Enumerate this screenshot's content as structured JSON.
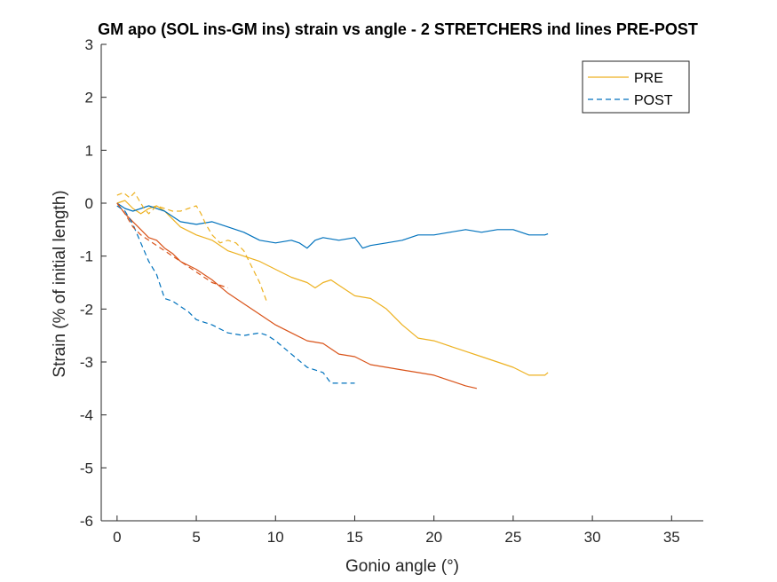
{
  "chart_data": {
    "type": "line",
    "title": "GM apo (SOL ins-GM ins) strain vs angle - 2 STRETCHERS ind lines PRE-POST",
    "xlabel": "Gonio angle (°)",
    "ylabel": "Strain (% of initial length)",
    "xlim": [
      -1,
      37
    ],
    "ylim": [
      -6,
      3
    ],
    "xticks": [
      0,
      5,
      10,
      15,
      20,
      25,
      30,
      35
    ],
    "yticks": [
      3,
      2,
      1,
      0,
      -1,
      -2,
      -3,
      -4,
      -5,
      -6
    ],
    "grid": false,
    "legend": {
      "position": "top-right",
      "entries": [
        {
          "label": "PRE",
          "color": "#EDB120",
          "dash": "solid"
        },
        {
          "label": "POST",
          "color": "#0072BD",
          "dash": "dashed"
        }
      ]
    },
    "series": [
      {
        "color": "#EDB120",
        "dash": "solid",
        "points": [
          [
            0,
            0
          ],
          [
            0.5,
            0.05
          ],
          [
            1,
            -0.1
          ],
          [
            1.5,
            -0.2
          ],
          [
            2,
            -0.1
          ],
          [
            2.5,
            -0.05
          ],
          [
            3,
            -0.15
          ],
          [
            3.5,
            -0.3
          ],
          [
            4,
            -0.45
          ],
          [
            5,
            -0.6
          ],
          [
            6,
            -0.7
          ],
          [
            7,
            -0.9
          ],
          [
            8,
            -1.0
          ],
          [
            9,
            -1.1
          ],
          [
            10,
            -1.25
          ],
          [
            11,
            -1.4
          ],
          [
            12,
            -1.5
          ],
          [
            12.5,
            -1.6
          ],
          [
            13,
            -1.5
          ],
          [
            13.5,
            -1.45
          ],
          [
            14,
            -1.55
          ],
          [
            15,
            -1.75
          ],
          [
            16,
            -1.8
          ],
          [
            17,
            -2.0
          ],
          [
            18,
            -2.3
          ],
          [
            19,
            -2.55
          ],
          [
            20,
            -2.6
          ],
          [
            21,
            -2.7
          ],
          [
            22,
            -2.8
          ],
          [
            23,
            -2.9
          ],
          [
            24,
            -3.0
          ],
          [
            25,
            -3.1
          ],
          [
            26,
            -3.25
          ],
          [
            27,
            -3.25
          ],
          [
            27.2,
            -3.2
          ]
        ]
      },
      {
        "color": "#0072BD",
        "dash": "solid",
        "points": [
          [
            0,
            0
          ],
          [
            0.5,
            -0.1
          ],
          [
            1,
            -0.15
          ],
          [
            1.5,
            -0.1
          ],
          [
            2,
            -0.05
          ],
          [
            2.5,
            -0.1
          ],
          [
            3,
            -0.15
          ],
          [
            4,
            -0.35
          ],
          [
            5,
            -0.4
          ],
          [
            6,
            -0.35
          ],
          [
            7,
            -0.45
          ],
          [
            8,
            -0.55
          ],
          [
            9,
            -0.7
          ],
          [
            10,
            -0.75
          ],
          [
            11,
            -0.7
          ],
          [
            11.5,
            -0.75
          ],
          [
            12,
            -0.85
          ],
          [
            12.5,
            -0.7
          ],
          [
            13,
            -0.65
          ],
          [
            14,
            -0.7
          ],
          [
            15,
            -0.65
          ],
          [
            15.5,
            -0.85
          ],
          [
            16,
            -0.8
          ],
          [
            17,
            -0.75
          ],
          [
            18,
            -0.7
          ],
          [
            19,
            -0.6
          ],
          [
            20,
            -0.6
          ],
          [
            21,
            -0.55
          ],
          [
            22,
            -0.5
          ],
          [
            23,
            -0.55
          ],
          [
            24,
            -0.5
          ],
          [
            25,
            -0.5
          ],
          [
            26,
            -0.6
          ],
          [
            27,
            -0.6
          ],
          [
            27.2,
            -0.58
          ]
        ]
      },
      {
        "color": "#D95319",
        "dash": "solid",
        "points": [
          [
            0,
            0
          ],
          [
            0.5,
            -0.2
          ],
          [
            1,
            -0.35
          ],
          [
            1.5,
            -0.5
          ],
          [
            2,
            -0.65
          ],
          [
            2.5,
            -0.7
          ],
          [
            3,
            -0.85
          ],
          [
            3.5,
            -0.95
          ],
          [
            4,
            -1.1
          ],
          [
            5,
            -1.25
          ],
          [
            6,
            -1.45
          ],
          [
            7,
            -1.7
          ],
          [
            8,
            -1.9
          ],
          [
            9,
            -2.1
          ],
          [
            10,
            -2.3
          ],
          [
            11,
            -2.45
          ],
          [
            12,
            -2.6
          ],
          [
            13,
            -2.65
          ],
          [
            14,
            -2.85
          ],
          [
            15,
            -2.9
          ],
          [
            16,
            -3.05
          ],
          [
            17,
            -3.1
          ],
          [
            18,
            -3.15
          ],
          [
            19,
            -3.2
          ],
          [
            20,
            -3.25
          ],
          [
            21,
            -3.35
          ],
          [
            22,
            -3.45
          ],
          [
            22.7,
            -3.5
          ]
        ]
      },
      {
        "color": "#EDB120",
        "dash": "dashed",
        "points": [
          [
            0,
            0.15
          ],
          [
            0.4,
            0.2
          ],
          [
            0.8,
            0.1
          ],
          [
            1.1,
            0.2
          ],
          [
            1.4,
            0.05
          ],
          [
            1.7,
            -0.1
          ],
          [
            2,
            -0.2
          ],
          [
            2.5,
            -0.05
          ],
          [
            3,
            -0.1
          ],
          [
            3.5,
            -0.15
          ],
          [
            4,
            -0.15
          ],
          [
            4.5,
            -0.1
          ],
          [
            5,
            -0.05
          ],
          [
            5.3,
            -0.2
          ],
          [
            5.6,
            -0.4
          ],
          [
            6,
            -0.6
          ],
          [
            6.5,
            -0.75
          ],
          [
            7,
            -0.7
          ],
          [
            7.5,
            -0.75
          ],
          [
            8,
            -0.9
          ],
          [
            8.5,
            -1.2
          ],
          [
            9,
            -1.5
          ],
          [
            9.5,
            -1.9
          ]
        ]
      },
      {
        "color": "#0072BD",
        "dash": "dashed",
        "points": [
          [
            0,
            -0.05
          ],
          [
            0.5,
            -0.15
          ],
          [
            1,
            -0.4
          ],
          [
            1.5,
            -0.75
          ],
          [
            2,
            -1.1
          ],
          [
            2.5,
            -1.35
          ],
          [
            3,
            -1.8
          ],
          [
            3.5,
            -1.85
          ],
          [
            4,
            -1.95
          ],
          [
            4.5,
            -2.05
          ],
          [
            5,
            -2.2
          ],
          [
            5.5,
            -2.25
          ],
          [
            6,
            -2.3
          ],
          [
            7,
            -2.45
          ],
          [
            8,
            -2.5
          ],
          [
            9,
            -2.45
          ],
          [
            9.5,
            -2.5
          ],
          [
            10,
            -2.6
          ],
          [
            11,
            -2.85
          ],
          [
            12,
            -3.1
          ],
          [
            13,
            -3.2
          ],
          [
            13.5,
            -3.4
          ],
          [
            14,
            -3.4
          ],
          [
            15,
            -3.4
          ]
        ]
      },
      {
        "color": "#D95319",
        "dash": "dashed",
        "points": [
          [
            0,
            0
          ],
          [
            0.5,
            -0.2
          ],
          [
            1,
            -0.45
          ],
          [
            1.5,
            -0.6
          ],
          [
            2,
            -0.7
          ],
          [
            3,
            -0.9
          ],
          [
            4,
            -1.1
          ],
          [
            5,
            -1.3
          ],
          [
            6,
            -1.5
          ],
          [
            6.5,
            -1.55
          ],
          [
            7,
            -1.6
          ]
        ]
      }
    ]
  }
}
